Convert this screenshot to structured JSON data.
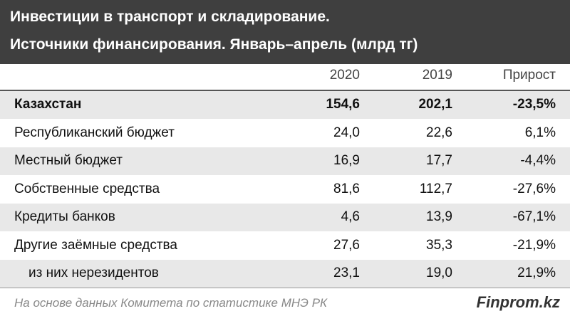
{
  "header": {
    "title_lines": [
      "Инвестиции в транспорт и складирование.",
      "Источники финансирования. Январь–апрель (млрд тг)"
    ]
  },
  "table": {
    "columns": [
      "2020",
      "2019",
      "Прирост"
    ],
    "rows": [
      [
        "Казахстан",
        "154,6",
        "202,1",
        "-23,5%"
      ],
      [
        "Республиканский бюджет",
        "24,0",
        "22,6",
        "6,1%"
      ],
      [
        "Местный бюджет",
        "16,9",
        "17,7",
        "-4,4%"
      ],
      [
        "Собственные средства",
        "81,6",
        "112,7",
        "-27,6%"
      ],
      [
        "Кредиты банков",
        "4,6",
        "13,9",
        "-67,1%"
      ],
      [
        "Другие заёмные средства",
        "27,6",
        "35,3",
        "-21,9%"
      ],
      [
        "из них нерезидентов",
        "23,1",
        "19,0",
        "21,9%"
      ]
    ]
  },
  "footer": {
    "source": "На основе данных Комитета по статистике МНЭ РК",
    "brand": "Finprom.kz"
  }
}
